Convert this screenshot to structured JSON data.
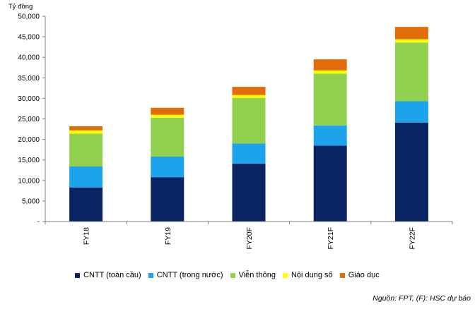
{
  "chart_data": {
    "type": "bar",
    "stacked": true,
    "unit_label": "Tỷ đồng",
    "categories": [
      "FY18",
      "FY19",
      "FY20F",
      "FY21F",
      "FY22F"
    ],
    "series": [
      {
        "name": "CNTT (toàn cầu)",
        "color": "#0a2463",
        "values": [
          8300,
          10800,
          14100,
          18500,
          24100
        ]
      },
      {
        "name": "CNTT (trong nước)",
        "color": "#1ca3ec",
        "values": [
          5100,
          5000,
          4900,
          4900,
          5200
        ]
      },
      {
        "name": "Viễn thông",
        "color": "#92d050",
        "values": [
          8000,
          9500,
          11100,
          12600,
          14300
        ]
      },
      {
        "name": "Nội dung số",
        "color": "#ffff00",
        "values": [
          800,
          700,
          700,
          800,
          800
        ]
      },
      {
        "name": "Giáo dục",
        "color": "#e36c0a",
        "values": [
          1000,
          1700,
          2000,
          2700,
          3000
        ]
      }
    ],
    "ylim": [
      0,
      50000
    ],
    "yticks": [
      0,
      5000,
      10000,
      15000,
      20000,
      25000,
      30000,
      35000,
      40000,
      45000,
      50000
    ],
    "ytick_labels": [
      "-",
      "5,000",
      "10,000",
      "15,000",
      "20,000",
      "25,000",
      "30,000",
      "35,000",
      "40,000",
      "45,000",
      "50,000"
    ],
    "grid": false,
    "legend_position": "bottom"
  },
  "source_note": "Nguồn: FPT, (F): HSC dự báo"
}
